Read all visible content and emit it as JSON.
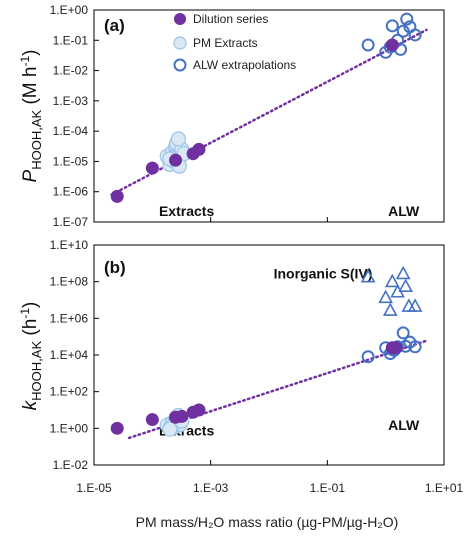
{
  "chart_data": [
    {
      "type": "scatter",
      "panel_label": "(a)",
      "ylabel": {
        "prefix": "P",
        "sub": "HOOH,AK",
        "unit": " (M h",
        "sup": "-1",
        "close": ")"
      },
      "yscale": "log",
      "ylim": [
        1e-07,
        1
      ],
      "yticks": [
        "1.E-07",
        "1.E-06",
        "1.E-05",
        "1.E-04",
        "1.E-03",
        "1.E-02",
        "1.E-01",
        "1.E+00"
      ],
      "xscale": "log",
      "xlim": [
        1e-05,
        10
      ],
      "legend": {
        "placement": "top-center",
        "entries": [
          {
            "label": "Dilution series",
            "series": "dilution"
          },
          {
            "label": "PM Extracts",
            "series": "extracts"
          },
          {
            "label": "ALW extrapolations",
            "series": "alw"
          }
        ]
      },
      "annotations": [
        {
          "text": "Extracts",
          "x": 0.00013,
          "y": 1.6e-07
        },
        {
          "text": "ALW",
          "x": 1.1,
          "y": 1.6e-07
        }
      ],
      "trendline": {
        "style": "dotted",
        "x": [
          2e-05,
          5
        ],
        "y": [
          8e-07,
          0.22
        ]
      },
      "series": [
        {
          "id": "dilution",
          "x": [
            2.5e-05,
            0.0001,
            0.00025,
            0.0005,
            0.00063,
            1.3
          ],
          "y": [
            7e-07,
            6e-06,
            1.1e-05,
            1.8e-05,
            2.5e-05,
            0.07
          ]
        },
        {
          "id": "extracts",
          "x": [
            0.00018,
            0.0002,
            0.00022,
            0.00024,
            0.00025,
            0.00027,
            0.0003,
            0.00022,
            0.00026,
            0.00032,
            0.00028,
            0.00035,
            0.0002,
            0.00029
          ],
          "y": [
            1.5e-05,
            8e-06,
            2e-05,
            1e-05,
            3e-05,
            2.2e-05,
            1.5e-05,
            1.3e-05,
            4e-05,
            2.5e-05,
            5.5e-05,
            1.8e-05,
            1.2e-05,
            7e-06
          ]
        },
        {
          "id": "alw",
          "x": [
            0.5,
            1.0,
            1.3,
            1.6,
            2.0,
            2.3,
            1.2,
            1.8,
            2.6,
            3.2
          ],
          "y": [
            0.07,
            0.04,
            0.3,
            0.1,
            0.2,
            0.5,
            0.06,
            0.05,
            0.28,
            0.15
          ]
        }
      ]
    },
    {
      "type": "scatter",
      "panel_label": "(b)",
      "ylabel": {
        "prefix": "k",
        "sub": "HOOH,AK",
        "unit": " (h",
        "sup": "-1",
        "close": ")"
      },
      "yscale": "log",
      "ylim": [
        0.01,
        10000000000.0
      ],
      "yticks": [
        "1.E-02",
        "1.E+00",
        "1.E+02",
        "1.E+04",
        "1.E+06",
        "1.E+08",
        "1.E+10"
      ],
      "xscale": "log",
      "xlim": [
        1e-05,
        10
      ],
      "xticks": [
        "1.E-05",
        "1.E-03",
        "1.E-01",
        "1.E+01"
      ],
      "xlabel": "PM mass/H₂O mass ratio (µg-PM/µg-H₂O)",
      "annotations": [
        {
          "text": "Inorganic S(IV)",
          "x": 0.012,
          "y": 150000000.0
        },
        {
          "text": "Extracts",
          "x": 0.00013,
          "y": 0.4
        },
        {
          "text": "ALW",
          "x": 1.1,
          "y": 0.8
        }
      ],
      "trendline": {
        "style": "dotted",
        "x": [
          4e-05,
          5
        ],
        "y": [
          0.3,
          60000.0
        ]
      },
      "series": [
        {
          "id": "dilution",
          "x": [
            2.5e-05,
            0.0001,
            0.00025,
            0.00032,
            0.0005,
            0.00063,
            1.3,
            1.5
          ],
          "y": [
            1.0,
            3.0,
            4.0,
            4.5,
            7.5,
            10,
            25000.0,
            25000.0
          ]
        },
        {
          "id": "extracts",
          "x": [
            0.00018,
            0.0002,
            0.00022,
            0.00024,
            0.00025,
            0.00027,
            0.0003,
            0.00022,
            0.00026,
            0.00032,
            0.00028,
            0.0002
          ],
          "y": [
            1.5,
            1.0,
            2.0,
            1.2,
            3.0,
            2.2,
            1.6,
            1.3,
            4.0,
            2.5,
            5.0,
            0.9
          ]
        },
        {
          "id": "alw",
          "x": [
            0.5,
            1.0,
            1.2,
            1.4,
            1.6,
            2.0,
            2.2,
            2.6,
            3.2,
            1.3
          ],
          "y": [
            8000.0,
            25000.0,
            12000.0,
            18000.0,
            28000.0,
            160000.0,
            30000.0,
            50000.0,
            28000.0,
            20000.0
          ]
        },
        {
          "id": "sulfur",
          "x": [
            0.5,
            1.0,
            1.3,
            1.6,
            2.0,
            2.2,
            2.5,
            3.2,
            1.2
          ],
          "y": [
            200000000.0,
            15000000.0,
            110000000.0,
            30000000.0,
            300000000.0,
            60000000.0,
            5000000.0,
            5000000.0,
            3000000.0
          ]
        }
      ]
    }
  ],
  "style": {
    "dilution_color": "#7030A0",
    "extracts_fill": "#DAE8F5",
    "extracts_stroke": "#9DC3E6",
    "alw_stroke": "#4472C4",
    "trend_color": "#7030A0"
  }
}
